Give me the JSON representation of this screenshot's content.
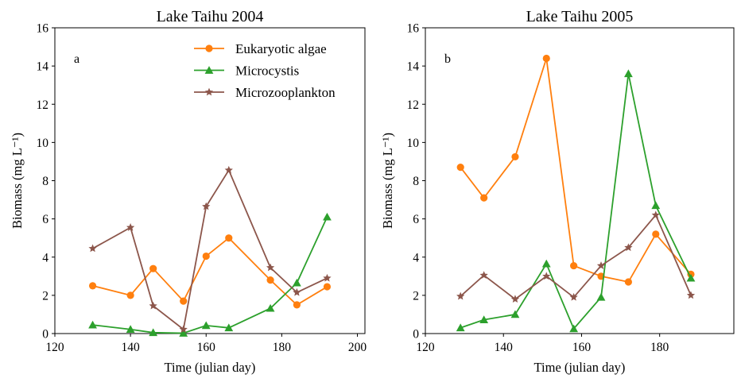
{
  "chart_data": [
    {
      "type": "line",
      "title": "Lake Taihu 2004",
      "panel_label": "a",
      "xlabel": "Time (julian day)",
      "ylabel": "Biomass (mg L⁻¹)",
      "xlim": [
        120,
        202
      ],
      "ylim": [
        0,
        16
      ],
      "xticks": [
        120,
        140,
        160,
        180,
        200
      ],
      "yticks": [
        0,
        2,
        4,
        6,
        8,
        10,
        12,
        14,
        16
      ],
      "legend": "top-right",
      "grid": false,
      "series": [
        {
          "name": "Eukaryotic algae",
          "color": "#ff7f0e",
          "marker": "circle",
          "x": [
            130,
            140,
            146,
            154,
            160,
            166,
            177,
            184,
            192
          ],
          "values": [
            2.5,
            2.0,
            3.4,
            1.7,
            4.05,
            5.0,
            2.8,
            1.5,
            2.45
          ]
        },
        {
          "name": "Microcystis",
          "color": "#2ca02c",
          "marker": "triangle",
          "x": [
            130,
            140,
            146,
            154,
            160,
            166,
            177,
            184,
            192
          ],
          "values": [
            0.45,
            0.22,
            0.05,
            0.02,
            0.42,
            0.3,
            1.32,
            2.65,
            6.1
          ]
        },
        {
          "name": "Microzooplankton",
          "color": "#8c564b",
          "marker": "star",
          "x": [
            130,
            140,
            146,
            154,
            160,
            166,
            177,
            184,
            192
          ],
          "values": [
            4.45,
            5.55,
            1.45,
            0.22,
            6.65,
            8.55,
            3.45,
            2.15,
            2.9
          ]
        }
      ]
    },
    {
      "type": "line",
      "title": "Lake Taihu 2005",
      "panel_label": "b",
      "xlabel": "Time (julian day)",
      "ylabel": "Biomass (mg L⁻¹)",
      "xlim": [
        120,
        199
      ],
      "ylim": [
        0,
        16
      ],
      "xticks": [
        120,
        140,
        160,
        180
      ],
      "yticks": [
        0,
        2,
        4,
        6,
        8,
        10,
        12,
        14,
        16
      ],
      "grid": false,
      "series": [
        {
          "color": "#ff7f0e",
          "marker": "circle",
          "x": [
            129,
            135,
            143,
            151,
            158,
            165,
            172,
            179,
            188
          ],
          "values": [
            8.7,
            7.1,
            9.25,
            14.4,
            3.55,
            3.0,
            2.7,
            5.2,
            3.1
          ]
        },
        {
          "color": "#2ca02c",
          "marker": "triangle",
          "x": [
            129,
            135,
            143,
            151,
            158,
            165,
            172,
            179,
            188
          ],
          "values": [
            0.3,
            0.72,
            1.0,
            3.65,
            0.25,
            1.9,
            13.6,
            6.7,
            2.9
          ]
        },
        {
          "color": "#8c564b",
          "marker": "star",
          "x": [
            129,
            135,
            143,
            151,
            158,
            165,
            172,
            179,
            188
          ],
          "values": [
            1.95,
            3.05,
            1.8,
            3.0,
            1.9,
            3.55,
            4.5,
            6.2,
            2.0
          ]
        }
      ]
    }
  ]
}
